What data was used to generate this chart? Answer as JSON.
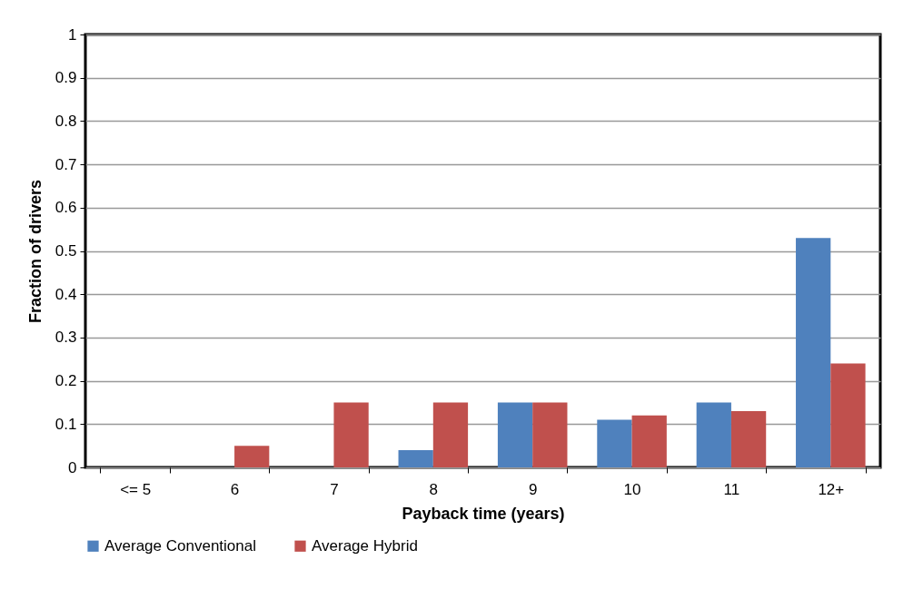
{
  "chart_data": {
    "type": "bar",
    "xlabel": "Payback time (years)",
    "ylabel": "Fraction of drivers",
    "categories": [
      "<= 5",
      "6",
      "7",
      "8",
      "9",
      "10",
      "11",
      "12+"
    ],
    "series": [
      {
        "name": "Average Conventional",
        "color": "#4f81bd",
        "values": [
          0,
          0,
          0,
          0.04,
          0.15,
          0.11,
          0.15,
          0.53
        ]
      },
      {
        "name": "Average Hybrid",
        "color": "#c0504d",
        "values": [
          0,
          0.05,
          0.15,
          0.15,
          0.15,
          0.12,
          0.13,
          0.24
        ]
      }
    ],
    "ylim": [
      0,
      1
    ],
    "yticks": [
      0,
      0.1,
      0.2,
      0.3,
      0.4,
      0.5,
      0.6,
      0.7,
      0.8,
      0.9,
      1
    ],
    "grid": "y",
    "legend": "bottom"
  }
}
